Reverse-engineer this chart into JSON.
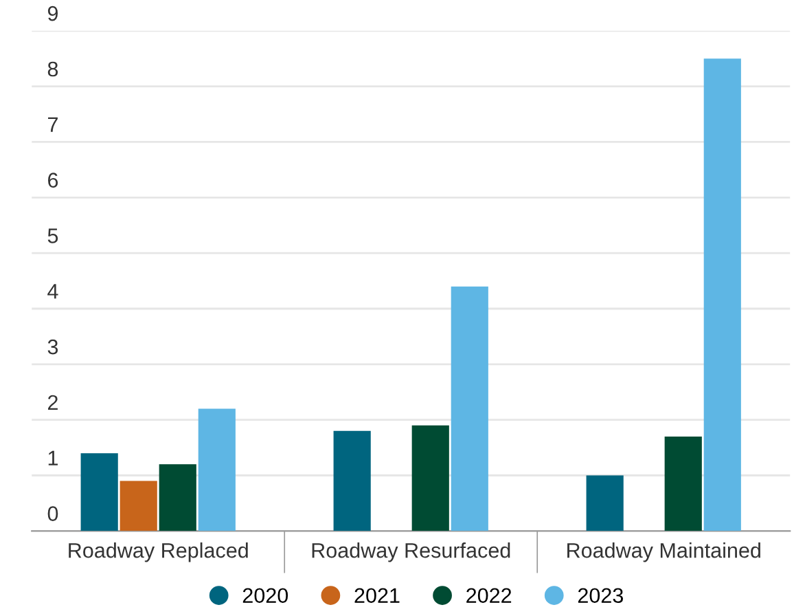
{
  "chart_data": {
    "type": "bar",
    "categories": [
      "Roadway Replaced",
      "Roadway Resurfaced",
      "Roadway Maintained"
    ],
    "series": [
      {
        "name": "2020",
        "color": "#00657f",
        "values": [
          1.4,
          1.8,
          1.0
        ]
      },
      {
        "name": "2021",
        "color": "#c8651b",
        "values": [
          0.9,
          null,
          null
        ]
      },
      {
        "name": "2022",
        "color": "#004b33",
        "values": [
          1.2,
          1.9,
          1.7
        ]
      },
      {
        "name": "2023",
        "color": "#5eb6e4",
        "values": [
          2.2,
          4.4,
          8.5
        ]
      }
    ],
    "ylim": [
      0,
      9
    ],
    "yticks": [
      0,
      1,
      2,
      3,
      4,
      5,
      6,
      7,
      8,
      9
    ],
    "grid": "y",
    "legend": "bottom",
    "marker": "circle"
  }
}
